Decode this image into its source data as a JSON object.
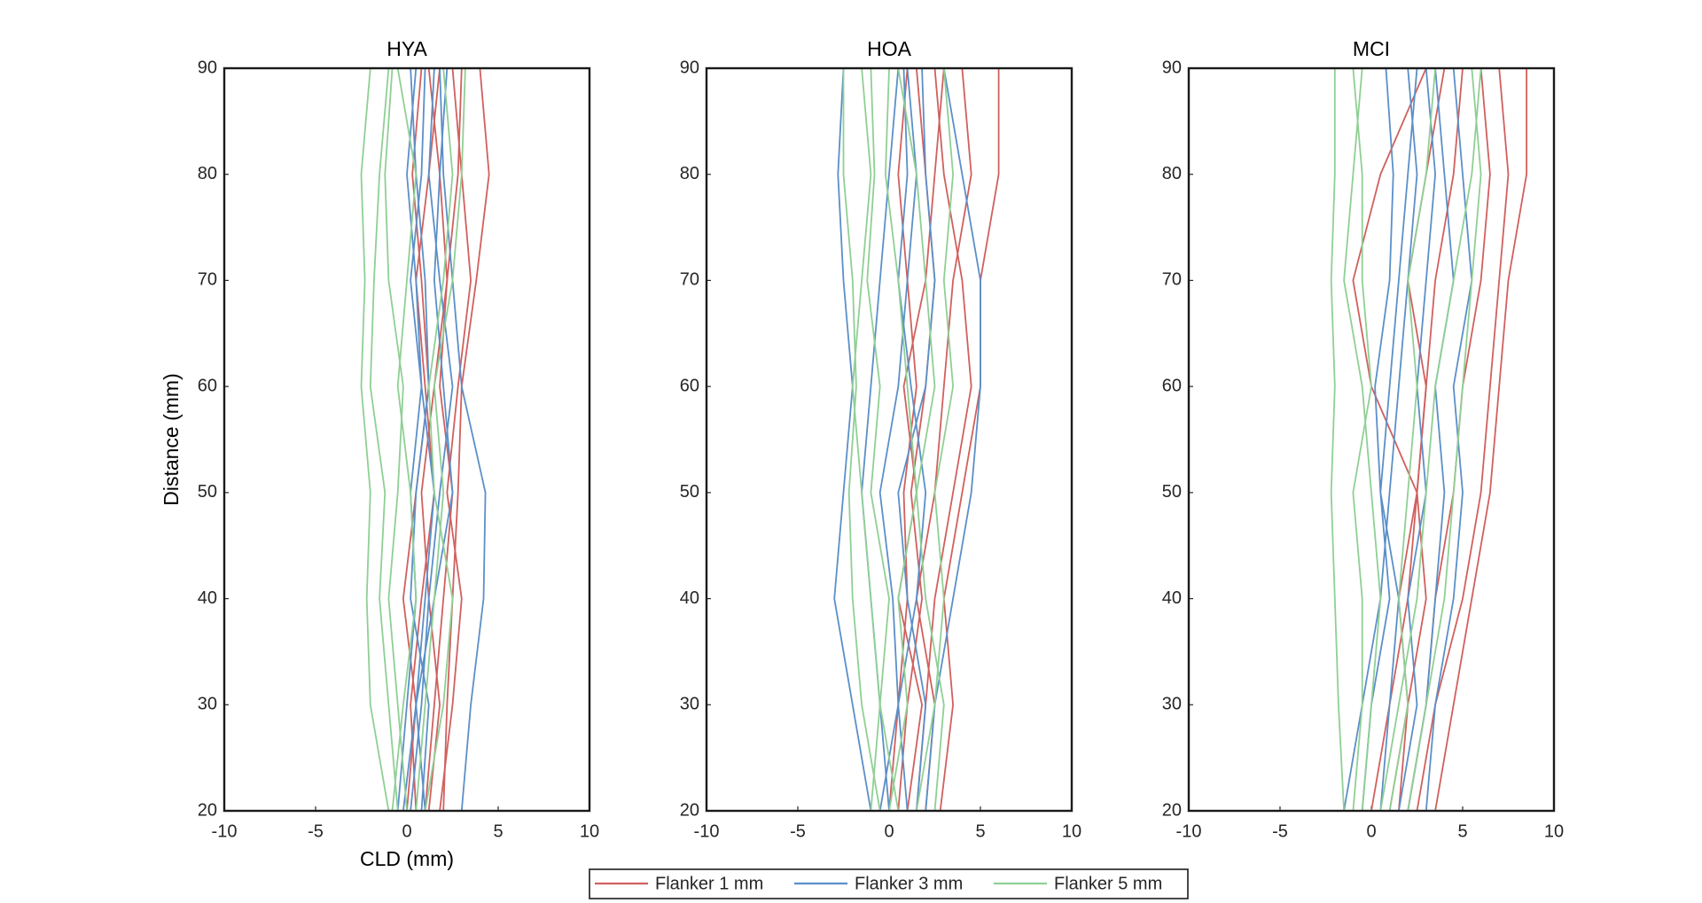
{
  "chart_data": {
    "type": "line",
    "xlabel": "CLD (mm)",
    "ylabel": "Distance (mm)",
    "xlim": [
      -10,
      10
    ],
    "xticks": [
      -10,
      -5,
      0,
      5,
      10
    ],
    "ylim": [
      20,
      90
    ],
    "yticks": [
      20,
      30,
      40,
      50,
      60,
      70,
      80,
      90
    ],
    "y": [
      20,
      30,
      40,
      50,
      60,
      70,
      80,
      90
    ],
    "legend": "bottom",
    "panels": [
      {
        "title": "HYA"
      },
      {
        "title": "HOA"
      },
      {
        "title": "MCI"
      }
    ],
    "series": [
      {
        "name": "Flanker 1 mm",
        "color": "#d0605e",
        "lines": [
          [
            [
              2,
              2.2,
              2.5,
              2.8,
              3,
              3.8,
              4.5,
              4
            ],
            [
              1,
              1.5,
              2,
              2.5,
              1.8,
              2.2,
              2.8,
              3
            ],
            [
              0.5,
              0.2,
              0.8,
              1.5,
              1,
              0.5,
              1.2,
              1.8
            ],
            [
              1.8,
              2.5,
              3,
              2.2,
              2.8,
              3.5,
              3,
              2.5
            ],
            [
              0,
              0.5,
              -0.2,
              0.5,
              1.2,
              0.8,
              0.3,
              0.8
            ],
            [
              1.2,
              1.8,
              1.2,
              0.8,
              1.5,
              2.2,
              1.8,
              1.2
            ]
          ],
          [
            [
              2.8,
              3.5,
              3,
              4,
              5,
              5,
              6,
              6
            ],
            [
              1.5,
              2,
              2.5,
              3.5,
              4.5,
              4,
              3,
              2.5
            ],
            [
              0.5,
              1,
              1.8,
              1.2,
              2,
              2.5,
              2,
              1.5
            ],
            [
              2,
              2.5,
              1.5,
              2.5,
              3,
              3.5,
              4.5,
              4
            ],
            [
              0,
              0.5,
              1,
              0.8,
              1.5,
              1,
              0.5,
              1
            ],
            [
              1,
              1.8,
              0.5,
              1.5,
              0.8,
              2,
              2.5,
              3
            ]
          ],
          [
            [
              3.5,
              4.5,
              5.5,
              6.5,
              7,
              7.5,
              8.5,
              8.5
            ],
            [
              2.5,
              3.5,
              5,
              6,
              6.5,
              7,
              7.5,
              7
            ],
            [
              1,
              2,
              3,
              2.5,
              0,
              -1,
              0.5,
              3
            ],
            [
              2,
              3,
              3.5,
              4.5,
              5,
              6,
              6.5,
              6
            ],
            [
              0,
              1,
              2,
              2.5,
              3,
              3.5,
              4.5,
              5
            ],
            [
              1.5,
              2,
              1.5,
              2.5,
              3,
              2,
              3,
              4
            ]
          ]
        ]
      },
      {
        "name": "Flanker 3 mm",
        "color": "#5b8fc8",
        "lines": [
          [
            [
              3,
              3.5,
              4.2,
              4.3,
              3,
              2.5,
              2,
              1.8
            ],
            [
              0.2,
              0.8,
              1.2,
              1.8,
              2.5,
              1.8,
              1.2,
              1.5
            ],
            [
              -0.5,
              0,
              0.5,
              0.2,
              0.8,
              0.5,
              0,
              0.5
            ],
            [
              1,
              0.5,
              1.5,
              2.5,
              2,
              1.5,
              1.8,
              2.2
            ],
            [
              0.8,
              1.2,
              0.2,
              0.5,
              1.2,
              1,
              0.5,
              0.2
            ],
            [
              -0.2,
              0.5,
              1,
              1.5,
              0.8,
              0.2,
              0.8,
              1
            ]
          ],
          [
            [
              -1,
              -2,
              -3,
              -2.5,
              -2,
              -2.5,
              -2.8,
              -2.5
            ],
            [
              2,
              2.5,
              3.5,
              4.5,
              5,
              5,
              4,
              3
            ],
            [
              0,
              -0.5,
              -1,
              -1.5,
              -1,
              -0.5,
              0,
              0.5
            ],
            [
              1,
              0.5,
              1.5,
              2,
              1.2,
              0.5,
              1,
              0.8
            ],
            [
              -0.5,
              0.5,
              0.2,
              -0.5,
              0.5,
              1,
              1.5,
              1
            ],
            [
              1.5,
              2,
              1,
              0.5,
              2,
              2.5,
              2,
              1.8
            ]
          ],
          [
            [
              -1.5,
              -0.5,
              0.5,
              1,
              1.5,
              2,
              2.5,
              2
            ],
            [
              2,
              3,
              3.5,
              4,
              3.5,
              4.5,
              4,
              3.5
            ],
            [
              0.5,
              1,
              1.5,
              0.5,
              1,
              1.5,
              2,
              2.5
            ],
            [
              1.5,
              2.5,
              2,
              3,
              2.5,
              3,
              3.5,
              3
            ],
            [
              -0.5,
              0,
              1,
              0.5,
              0.2,
              1,
              1.2,
              0.8
            ],
            [
              3,
              3.5,
              4.5,
              5,
              4.5,
              5.5,
              5,
              4.5
            ]
          ]
        ]
      },
      {
        "name": "Flanker 5 mm",
        "color": "#8fcf94",
        "lines": [
          [
            [
              -1,
              -2,
              -2.2,
              -2,
              -2.5,
              -2.3,
              -2.5,
              -2
            ],
            [
              -0.5,
              -1,
              -1.5,
              -1.2,
              -2,
              -1.8,
              -1.5,
              -1
            ],
            [
              1,
              2,
              2.5,
              1.5,
              1.2,
              2,
              2.5,
              2
            ],
            [
              0,
              -0.5,
              -1,
              -0.5,
              -0.2,
              -1,
              -1.2,
              -0.8
            ],
            [
              -0.8,
              -0.2,
              0.5,
              0.2,
              -0.5,
              0,
              0.5,
              -0.5
            ],
            [
              0.5,
              1,
              1.5,
              2,
              1.5,
              2.5,
              3,
              3.2
            ]
          ],
          [
            [
              -0.5,
              -1.5,
              -2,
              -2.2,
              -1.8,
              -2,
              -2.5,
              -2.5
            ],
            [
              0.5,
              -0.5,
              -1,
              -1.5,
              -2,
              -1.5,
              -1,
              -1.5
            ],
            [
              1.5,
              2.5,
              3,
              2.5,
              3.5,
              3,
              3.5,
              3
            ],
            [
              -1,
              -0.5,
              0,
              -1,
              -0.5,
              -1.2,
              -0.8,
              -1
            ],
            [
              0,
              1,
              0.5,
              1.5,
              1,
              0.5,
              -0.2,
              0
            ],
            [
              2.5,
              3,
              2,
              1.5,
              2.5,
              2,
              1.5,
              0.5
            ]
          ],
          [
            [
              -1.5,
              -1.8,
              -2,
              -2.2,
              -2,
              -2.2,
              -2,
              -2
            ],
            [
              -1,
              -0.5,
              -0.5,
              -1,
              0,
              -0.5,
              -0.5,
              -1
            ],
            [
              0.5,
              1.5,
              2.5,
              3,
              3.5,
              4.5,
              5.5,
              6
            ],
            [
              -0.5,
              0,
              0.5,
              0,
              -0.5,
              -1.5,
              -1,
              -0.5
            ],
            [
              1,
              2,
              1.5,
              2,
              2.5,
              2,
              3,
              3.5
            ],
            [
              2,
              3,
              4,
              4.5,
              5,
              5.5,
              6,
              5.5
            ]
          ]
        ]
      }
    ]
  }
}
